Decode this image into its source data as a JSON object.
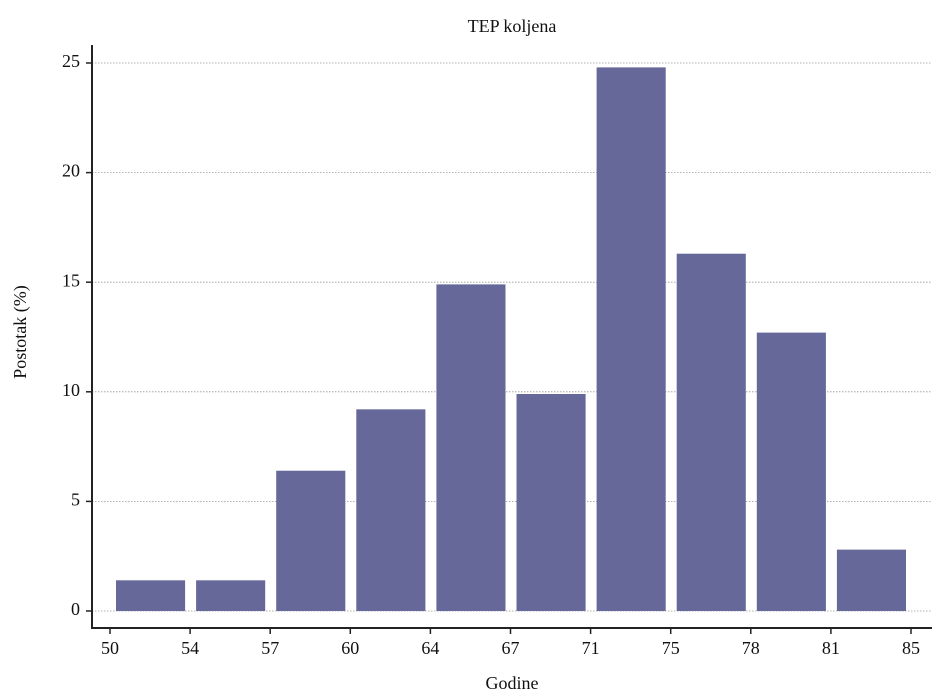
{
  "chart_data": {
    "type": "histogram",
    "title": "TEP koljena",
    "xlabel": "Godine",
    "ylabel": "Postotak (%)",
    "bins": [
      50,
      54,
      57,
      60,
      64,
      67,
      71,
      75,
      78,
      81,
      85
    ],
    "values": [
      1.4,
      1.4,
      6.4,
      9.2,
      14.9,
      9.9,
      24.8,
      16.3,
      12.7,
      2.8
    ],
    "color": "#666899",
    "ylim": [
      0,
      25
    ],
    "yticks": [
      0,
      5,
      10,
      15,
      20,
      25
    ],
    "grid": true
  }
}
